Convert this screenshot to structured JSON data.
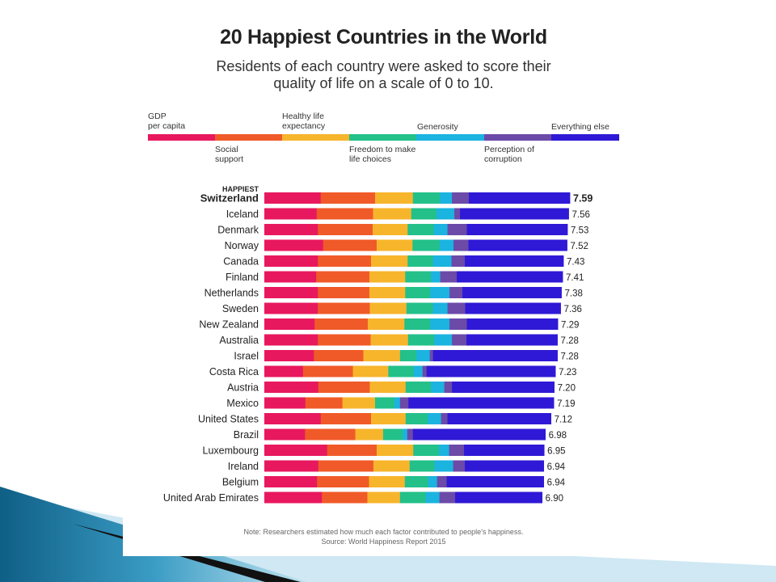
{
  "title": "20 Happiest Countries in the World",
  "subtitle_lines": [
    "Residents of each country were asked to score their",
    "quality of life on a scale of 0 to 10."
  ],
  "legend": [
    {
      "lines": [
        "GDP",
        "per capita"
      ],
      "color": "#e8185e",
      "label_pos": "above"
    },
    {
      "lines": [
        "Social",
        "support"
      ],
      "color": "#f05a28",
      "label_pos": "below"
    },
    {
      "lines": [
        "Healthy life",
        "expectancy"
      ],
      "color": "#f7b52c",
      "label_pos": "above"
    },
    {
      "lines": [
        "Freedom to make",
        "life choices"
      ],
      "color": "#23c08a",
      "label_pos": "below"
    },
    {
      "lines": [
        "Generosity"
      ],
      "color": "#1bb3e0",
      "label_pos": "above"
    },
    {
      "lines": [
        "Perception of",
        "corruption"
      ],
      "color": "#6b4aa8",
      "label_pos": "below"
    },
    {
      "lines": [
        "Everything else"
      ],
      "color": "#2f19d6",
      "label_pos": "above"
    }
  ],
  "happiest_label": "HAPPIEST",
  "note_lines": [
    "Note: Researchers estimated how much each factor contributed to people's happiness.",
    "Source: World Happiness Report 2015"
  ],
  "chart_data": {
    "type": "bar",
    "orientation": "horizontal",
    "stacked": true,
    "xlim": [
      0,
      7.59
    ],
    "categories": [
      "Switzerland",
      "Iceland",
      "Denmark",
      "Norway",
      "Canada",
      "Finland",
      "Netherlands",
      "Sweden",
      "New Zealand",
      "Australia",
      "Israel",
      "Costa Rica",
      "Austria",
      "Mexico",
      "United States",
      "Brazil",
      "Luxembourg",
      "Ireland",
      "Belgium",
      "United Arab Emirates"
    ],
    "totals": [
      7.59,
      7.56,
      7.53,
      7.52,
      7.43,
      7.41,
      7.38,
      7.36,
      7.29,
      7.28,
      7.28,
      7.23,
      7.2,
      7.19,
      7.12,
      6.98,
      6.95,
      6.94,
      6.94,
      6.9
    ],
    "total_labels": [
      "7.59",
      "7.56",
      "7.53",
      "7.52",
      "7.43",
      "7.41",
      "7.38",
      "7.36",
      "7.29",
      "7.28",
      "7.28",
      "7.23",
      "7.20",
      "7.19",
      "7.12",
      "6.98",
      "6.95",
      "6.94",
      "6.94",
      "6.90"
    ],
    "series": [
      {
        "name": "GDP per capita",
        "color": "#e8185e",
        "values": [
          1.4,
          1.3,
          1.33,
          1.46,
          1.33,
          1.29,
          1.33,
          1.33,
          1.25,
          1.33,
          1.23,
          0.96,
          1.34,
          1.02,
          1.4,
          1.01,
          1.56,
          1.34,
          1.31,
          1.43
        ]
      },
      {
        "name": "Social support",
        "color": "#f05a28",
        "values": [
          1.35,
          1.4,
          1.36,
          1.33,
          1.32,
          1.32,
          1.28,
          1.29,
          1.32,
          1.31,
          1.23,
          1.24,
          1.28,
          0.92,
          1.25,
          1.25,
          1.23,
          1.37,
          1.29,
          1.13
        ]
      },
      {
        "name": "Healthy life expectancy",
        "color": "#f7b52c",
        "values": [
          0.94,
          0.95,
          0.87,
          0.89,
          0.91,
          0.89,
          0.89,
          0.91,
          0.91,
          0.93,
          0.91,
          0.88,
          0.89,
          0.81,
          0.86,
          0.69,
          0.91,
          0.9,
          0.89,
          0.81
        ]
      },
      {
        "name": "Freedom to make life choices",
        "color": "#23c08a",
        "values": [
          0.67,
          0.63,
          0.65,
          0.67,
          0.63,
          0.64,
          0.62,
          0.66,
          0.64,
          0.65,
          0.41,
          0.63,
          0.63,
          0.48,
          0.55,
          0.49,
          0.64,
          0.62,
          0.58,
          0.64
        ]
      },
      {
        "name": "Generosity",
        "color": "#1bb3e0",
        "values": [
          0.3,
          0.44,
          0.34,
          0.35,
          0.46,
          0.23,
          0.48,
          0.36,
          0.48,
          0.44,
          0.33,
          0.22,
          0.33,
          0.14,
          0.33,
          0.11,
          0.25,
          0.46,
          0.22,
          0.34
        ]
      },
      {
        "name": "Perception of corruption",
        "color": "#6b4aa8",
        "values": [
          0.42,
          0.14,
          0.48,
          0.37,
          0.33,
          0.41,
          0.32,
          0.44,
          0.43,
          0.36,
          0.08,
          0.1,
          0.19,
          0.21,
          0.16,
          0.14,
          0.37,
          0.29,
          0.24,
          0.39
        ]
      },
      {
        "name": "Everything else",
        "color": "#2f19d6",
        "values": [
          2.51,
          2.7,
          2.5,
          2.45,
          2.45,
          2.63,
          2.46,
          2.37,
          2.26,
          2.26,
          3.09,
          3.2,
          2.54,
          3.61,
          2.57,
          3.29,
          1.99,
          1.96,
          2.41,
          2.16
        ]
      }
    ]
  }
}
